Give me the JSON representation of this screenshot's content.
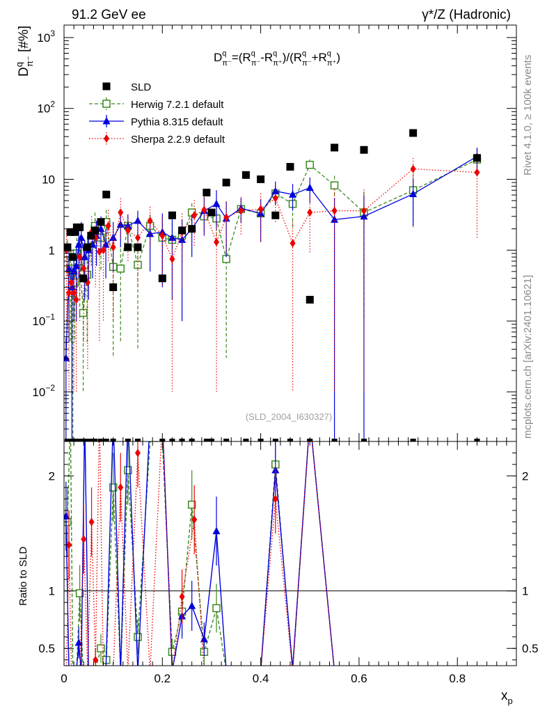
{
  "header": {
    "left": "91.2 GeV ee",
    "right": "γ*/Z (Hadronic)"
  },
  "side_labels": {
    "top": "Rivet 4.1.0, ≥ 100k events",
    "bottom": "mcplots.cern.ch [arXiv:2401.10621]"
  },
  "colors": {
    "sld": "#000000",
    "herwig": "#3a8a1e",
    "pythia": "#0000dd",
    "sherpa": "#ee0000"
  },
  "chart_data": {
    "type": "scatter",
    "title": "D^q_π- = (R^q_π- − R^q_π+)/(R^q_π- + R^q_π+)",
    "formula": {
      "lhs_base": "D",
      "lhs_sup": "q",
      "lhs_sub": "π⁻",
      "eq": "=(",
      "r": "R",
      "q": "q",
      "pim": "π⁻",
      "pip": "π⁺",
      "minus": "-",
      "mid": ")/(",
      "plus": "+",
      "close": ")"
    },
    "ylabel": {
      "base": "D",
      "sup": "q",
      "sub": "π⁻",
      "unit": " [#%]"
    },
    "xlabel": {
      "base": "x",
      "sub": "p"
    },
    "ratio_ylabel": "Ratio to SLD",
    "analysis_id": "(SLD_2004_I630327)",
    "xlim": [
      0,
      0.92
    ],
    "ylim": [
      0.002,
      1500
    ],
    "yscale": "log",
    "ratio_ylim": [
      0.35,
      2.3
    ],
    "x_ticks": [
      0,
      0.2,
      0.4,
      0.6,
      0.8
    ],
    "x_tick_labels": [
      "0",
      "0.2",
      "0.4",
      "0.6",
      "0.8"
    ],
    "y_ticks": [
      {
        "value": 1000,
        "base": "10",
        "exp": "3"
      },
      {
        "value": 100,
        "base": "10",
        "exp": "2"
      },
      {
        "value": 10,
        "base": "10",
        "exp": ""
      },
      {
        "value": 1,
        "base": "1",
        "exp": ""
      },
      {
        "value": 0.1,
        "base": "10",
        "exp": "−1"
      },
      {
        "value": 0.01,
        "base": "10",
        "exp": "−2"
      }
    ],
    "ratio_ticks": [
      0.5,
      1,
      2
    ],
    "ratio_tick_labels": [
      "0.5",
      "1",
      "2"
    ],
    "legend": [
      {
        "name": "SLD",
        "key": "sld"
      },
      {
        "name": "Herwig 7.2.1 default",
        "key": "herwig"
      },
      {
        "name": "Pythia 8.315 default",
        "key": "pythia"
      },
      {
        "name": "Sherpa 2.2.9 default",
        "key": "sherpa"
      }
    ],
    "reference": {
      "name": "SLD",
      "x": [
        0.007,
        0.013,
        0.018,
        0.022,
        0.026,
        0.032,
        0.039,
        0.047,
        0.055,
        0.063,
        0.075,
        0.086,
        0.1,
        0.13,
        0.15,
        0.2,
        0.22,
        0.24,
        0.26,
        0.29,
        0.3,
        0.33,
        0.37,
        0.4,
        0.43,
        0.46,
        0.5,
        0.55,
        0.61,
        0.71,
        0.84
      ],
      "y": [
        1.1,
        1.8,
        0.8,
        1.8,
        2.1,
        2.1,
        0.4,
        1.1,
        1.6,
        1.9,
        2.5,
        6.1,
        0.3,
        1.1,
        1.1,
        0.4,
        3.1,
        1.9,
        2.0,
        6.5,
        3.4,
        9.0,
        11.5,
        10.0,
        3.1,
        15.0,
        0.2,
        28.0,
        26.0,
        45.0,
        20.0
      ]
    },
    "series": [
      {
        "name": "Herwig 7.2.1 default",
        "key": "herwig",
        "style": "dashed",
        "marker": "open-square",
        "x": [
          0.007,
          0.013,
          0.018,
          0.022,
          0.026,
          0.032,
          0.039,
          0.047,
          0.055,
          0.063,
          0.075,
          0.086,
          0.1,
          0.115,
          0.13,
          0.15,
          0.175,
          0.2,
          0.22,
          0.24,
          0.26,
          0.285,
          0.31,
          0.33,
          0.36,
          0.4,
          0.43,
          0.465,
          0.5,
          0.55,
          0.61,
          0.71,
          0.84
        ],
        "y": [
          0.9,
          0.55,
          0.25,
          0.35,
          0.9,
          0.7,
          0.13,
          0.45,
          1.4,
          2.2,
          1.5,
          2.5,
          0.58,
          0.55,
          2.2,
          0.62,
          2.2,
          1.5,
          1.4,
          1.6,
          3.4,
          3.0,
          2.8,
          0.75,
          3.8,
          3.3,
          6.3,
          4.5,
          16.0,
          8.2,
          3.4,
          7.0,
          19.0
        ],
        "err": [
          0.5,
          0.5,
          0.3,
          0.3,
          0.6,
          0.6,
          0.12,
          0.4,
          0.8,
          1.2,
          1.0,
          1.2,
          0.55,
          0.5,
          0.9,
          0.58,
          1.0,
          1.0,
          1.0,
          1.0,
          1.2,
          1.2,
          1.5,
          0.72,
          1.2,
          1.5,
          2.0,
          2.5,
          3.0,
          3.0,
          3.3,
          5.0,
          8.0
        ],
        "ratio": [
          1.6,
          2.5,
          0.3,
          0.25,
          0.35,
          0.98,
          0.3,
          0.3,
          0.35,
          0.3,
          0.5,
          0.4,
          1.9,
          0.3,
          2.05,
          0.6,
          2.3,
          2.3,
          0.47,
          0.82,
          1.75,
          0.47,
          0.85,
          0.3,
          0.3,
          0.3,
          2.1,
          0.3,
          2.5,
          0.3,
          0.3,
          0.3,
          0.3
        ]
      },
      {
        "name": "Pythia 8.315 default",
        "key": "pythia",
        "style": "solid",
        "marker": "filled-triangle",
        "x": [
          0.004,
          0.01,
          0.016,
          0.02,
          0.025,
          0.03,
          0.035,
          0.042,
          0.05,
          0.058,
          0.066,
          0.075,
          0.085,
          0.1,
          0.115,
          0.13,
          0.15,
          0.175,
          0.2,
          0.22,
          0.24,
          0.26,
          0.285,
          0.31,
          0.33,
          0.36,
          0.4,
          0.43,
          0.465,
          0.5,
          0.55,
          0.61,
          0.71,
          0.84
        ],
        "y": [
          0.03,
          0.55,
          0.3,
          0.5,
          0.6,
          1.2,
          1.5,
          0.8,
          1.0,
          1.2,
          1.6,
          2.0,
          1.2,
          1.5,
          2.3,
          2.2,
          2.6,
          1.7,
          1.8,
          1.5,
          1.4,
          2.0,
          3.6,
          4.5,
          2.8,
          3.9,
          3.3,
          6.8,
          6.1,
          7.6,
          2.7,
          3.0,
          6.2,
          21.0
        ],
        "err": [
          0.028,
          0.5,
          0.3,
          0.4,
          0.5,
          0.8,
          1.0,
          0.6,
          0.8,
          0.8,
          1.0,
          1.0,
          0.8,
          1.0,
          1.2,
          1.0,
          1.0,
          1.2,
          1.5,
          1.3,
          1.3,
          1.2,
          2.0,
          2.5,
          2.0,
          1.5,
          2.0,
          2.5,
          2.5,
          3.0,
          2.699,
          2.999,
          4.0,
          7.0
        ],
        "ratio": [
          1.65,
          0.3,
          0.3,
          0.3,
          0.3,
          0.55,
          0.3,
          2.5,
          0.3,
          0.3,
          0.3,
          0.3,
          0.3,
          2.5,
          0.3,
          2.5,
          0.3,
          2.5,
          2.5,
          0.3,
          0.78,
          0.87,
          0.58,
          1.52,
          0.3,
          0.3,
          0.3,
          2.05,
          0.33,
          2.5,
          0.3,
          0.3,
          0.3,
          0.3
        ]
      },
      {
        "name": "Sherpa 2.2.9 default",
        "key": "sherpa",
        "style": "dotted",
        "marker": "filled-diamond",
        "x": [
          0.005,
          0.01,
          0.015,
          0.02,
          0.025,
          0.032,
          0.04,
          0.048,
          0.056,
          0.064,
          0.072,
          0.08,
          0.09,
          0.1,
          0.115,
          0.13,
          0.15,
          0.175,
          0.2,
          0.22,
          0.24,
          0.265,
          0.285,
          0.31,
          0.33,
          0.36,
          0.4,
          0.43,
          0.465,
          0.5,
          0.55,
          0.61,
          0.71,
          0.84
        ],
        "y": [
          1.0,
          0.25,
          0.35,
          0.25,
          0.2,
          0.8,
          0.55,
          0.35,
          1.8,
          1.5,
          0.95,
          1.0,
          2.2,
          1.1,
          3.4,
          1.9,
          1.5,
          2.6,
          1.6,
          0.75,
          1.8,
          3.1,
          3.7,
          1.3,
          2.9,
          3.6,
          3.8,
          5.4,
          1.25,
          3.4,
          3.6,
          3.6,
          14.0,
          12.5
        ],
        "err": [
          0.9,
          0.24,
          0.3,
          0.24,
          0.19,
          0.6,
          0.5,
          0.33,
          1.2,
          1.2,
          0.9,
          0.9,
          1.5,
          1.0,
          2.0,
          1.2,
          1.2,
          1.5,
          1.3,
          0.74,
          1.5,
          2.0,
          2.0,
          1.29,
          2.0,
          2.0,
          2.5,
          3.0,
          1.24,
          2.5,
          3.59,
          3.59,
          6.0,
          11.0
        ],
        "ratio": [
          0.3,
          1.4,
          0.3,
          0.3,
          0.3,
          0.3,
          1.45,
          0.3,
          1.6,
          0.4,
          2.5,
          0.3,
          0.3,
          0.3,
          1.9,
          0.3,
          2.2,
          0.3,
          2.5,
          0.3,
          0.95,
          1.62,
          0.3,
          0.3,
          0.3,
          0.3,
          0.3,
          1.8,
          0.3,
          2.5,
          0.3,
          0.3,
          0.3,
          0.3
        ]
      }
    ]
  }
}
